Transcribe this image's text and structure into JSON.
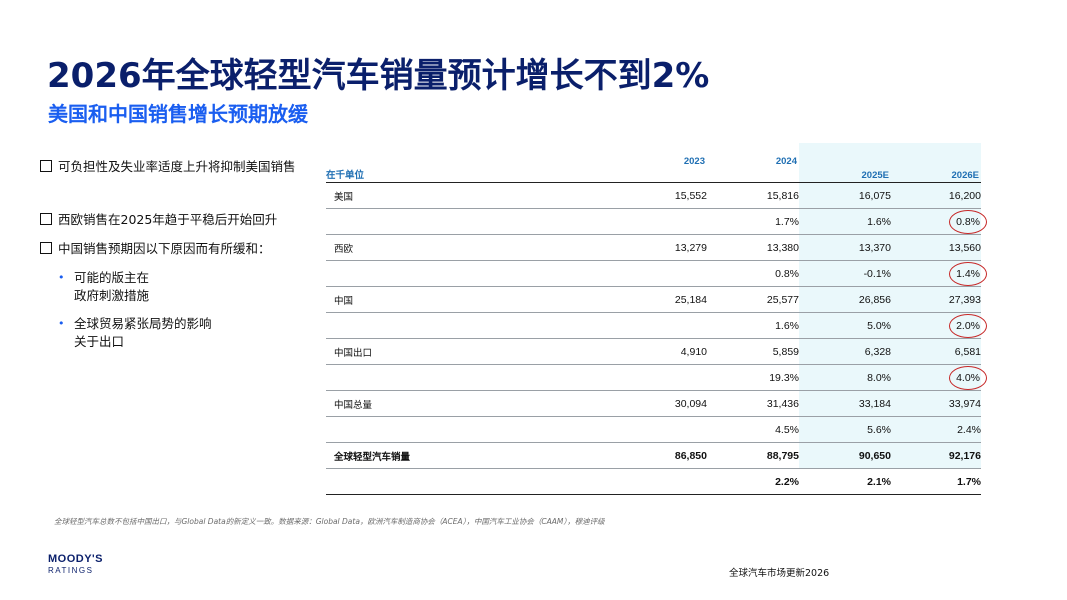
{
  "title": "2026年全球轻型汽车销量预计增长不到2%",
  "subtitle": "美国和中国销售增长预期放缓",
  "left_bullets": [
    {
      "text": "可负担性及失业率适度上升将抑制美国销售"
    },
    {
      "text": "西欧销售在2025年趋于平稳后开始回升"
    },
    {
      "text": "中国销售预期因以下原因而有所缓和："
    }
  ],
  "sub_bullets": [
    {
      "line1": "可能的版主在",
      "line2": "政府刺激措施"
    },
    {
      "line1": "全球贸易紧张局势的影响",
      "line2": "关于出口"
    }
  ],
  "table": {
    "unit": "在千单位",
    "columns": [
      "2023",
      "2024",
      "2025E",
      "2026E"
    ],
    "rows": [
      {
        "label": "美国",
        "values": [
          "15,552",
          "15,816",
          "16,075",
          "16,200"
        ],
        "bold": false
      },
      {
        "label": "",
        "values": [
          "",
          "1.7%",
          "1.6%",
          "0.8%"
        ],
        "bold": false,
        "circled": 3
      },
      {
        "label": "西欧",
        "values": [
          "13,279",
          "13,380",
          "13,370",
          "13,560"
        ],
        "bold": false
      },
      {
        "label": "",
        "values": [
          "",
          "0.8%",
          "-0.1%",
          "1.4%"
        ],
        "bold": false,
        "circled": 3
      },
      {
        "label": "中国",
        "values": [
          "25,184",
          "25,577",
          "26,856",
          "27,393"
        ],
        "bold": false
      },
      {
        "label": "",
        "values": [
          "",
          "1.6%",
          "5.0%",
          "2.0%"
        ],
        "bold": false,
        "circled": 3
      },
      {
        "label": "中国出口",
        "values": [
          "4,910",
          "5,859",
          "6,328",
          "6,581"
        ],
        "bold": false
      },
      {
        "label": "",
        "values": [
          "",
          "19.3%",
          "8.0%",
          "4.0%"
        ],
        "bold": false,
        "circled": 3
      },
      {
        "label": "中国总量",
        "values": [
          "30,094",
          "31,436",
          "33,184",
          "33,974"
        ],
        "bold": false
      },
      {
        "label": "",
        "values": [
          "",
          "4.5%",
          "5.6%",
          "2.4%"
        ],
        "bold": false
      },
      {
        "label": "全球轻型汽车销量",
        "values": [
          "86,850",
          "88,795",
          "90,650",
          "92,176"
        ],
        "bold": true
      },
      {
        "label": "",
        "values": [
          "",
          "2.2%",
          "2.1%",
          "1.7%"
        ],
        "bold": true
      }
    ]
  },
  "footnote": "全球轻型汽车总数不包括中国出口，与Global Data的新定义一致。数据来源：Global Data，欧洲汽车制造商协会（ACEA），中国汽车工业协会（CAAM），穆迪评级",
  "logo": {
    "brand": "MOODY'S",
    "sub": "RATINGS"
  },
  "footer_title": "全球汽车市场更新2026",
  "colors": {
    "title": "#0a1f6b",
    "subtitle": "#1a5ef0",
    "header": "#1f6fb3",
    "highlight_circle": "#c62828",
    "shade": "#eaf8fb"
  }
}
